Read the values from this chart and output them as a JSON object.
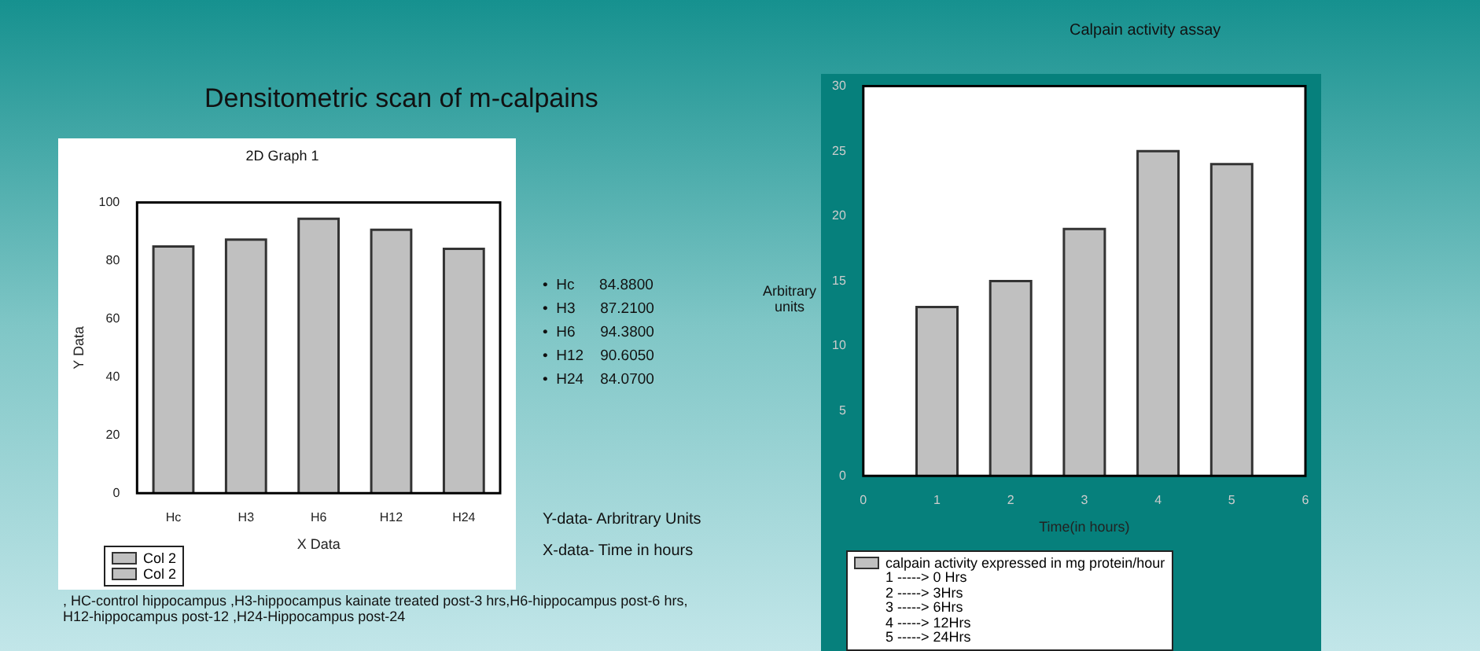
{
  "chart_data": [
    {
      "type": "bar",
      "title": "Densitometric scan of m-calpains",
      "subtitle": "2D Graph 1",
      "xlabel": "X Data",
      "ylabel": "Y Data",
      "categories": [
        "Hc",
        "H3",
        "H6",
        "H12",
        "H24"
      ],
      "series": [
        {
          "name": "Col 2",
          "color": "#c0c0c0",
          "values": [
            84.88,
            87.21,
            94.38,
            90.605,
            84.07
          ]
        },
        {
          "name": "Col 2",
          "color": "#c0c0c0",
          "values": [
            null,
            null,
            null,
            null,
            null
          ]
        }
      ],
      "ylim": [
        0,
        100
      ],
      "yticks": [
        0,
        20,
        40,
        60,
        80,
        100
      ],
      "grid": false,
      "legend": "bottom left",
      "annotations": [
        "•  Hc      84.8800",
        "•  H3      87.2100",
        "•  H6      94.3800",
        "•  H12    90.6050",
        "•  H24    84.0700",
        "Y-data- Arbritrary Units",
        "X-data- Time in hours",
        ", HC-control hippocampus ,H3-hippocampus kainate treated post-3 hrs,H6-hippocampus post-6 hrs, H12-hippocampus post-12 ,H24-Hippocampus post-24"
      ]
    },
    {
      "type": "bar",
      "title": "Calpain activity assay",
      "xlabel": "Time(in hours)",
      "ylabel": "Arbitrary units",
      "x": [
        1,
        2,
        3,
        4,
        5
      ],
      "series": [
        {
          "name": "calpain activity expressed in mg protein/hour",
          "color": "#c0c0c0",
          "values": [
            13,
            15,
            19,
            25,
            24
          ]
        }
      ],
      "xlim": [
        0,
        6
      ],
      "xticks": [
        0,
        1,
        2,
        3,
        4,
        5,
        6
      ],
      "ylim": [
        0,
        30
      ],
      "yticks": [
        0,
        5,
        10,
        15,
        20,
        25,
        30
      ],
      "grid": false,
      "legend": "bottom",
      "annotations": [
        "1 -----> 0 Hrs",
        "2 -----> 3Hrs",
        "3 -----> 6Hrs",
        "4 -----> 12Hrs",
        "5 -----> 24Hrs"
      ]
    }
  ]
}
